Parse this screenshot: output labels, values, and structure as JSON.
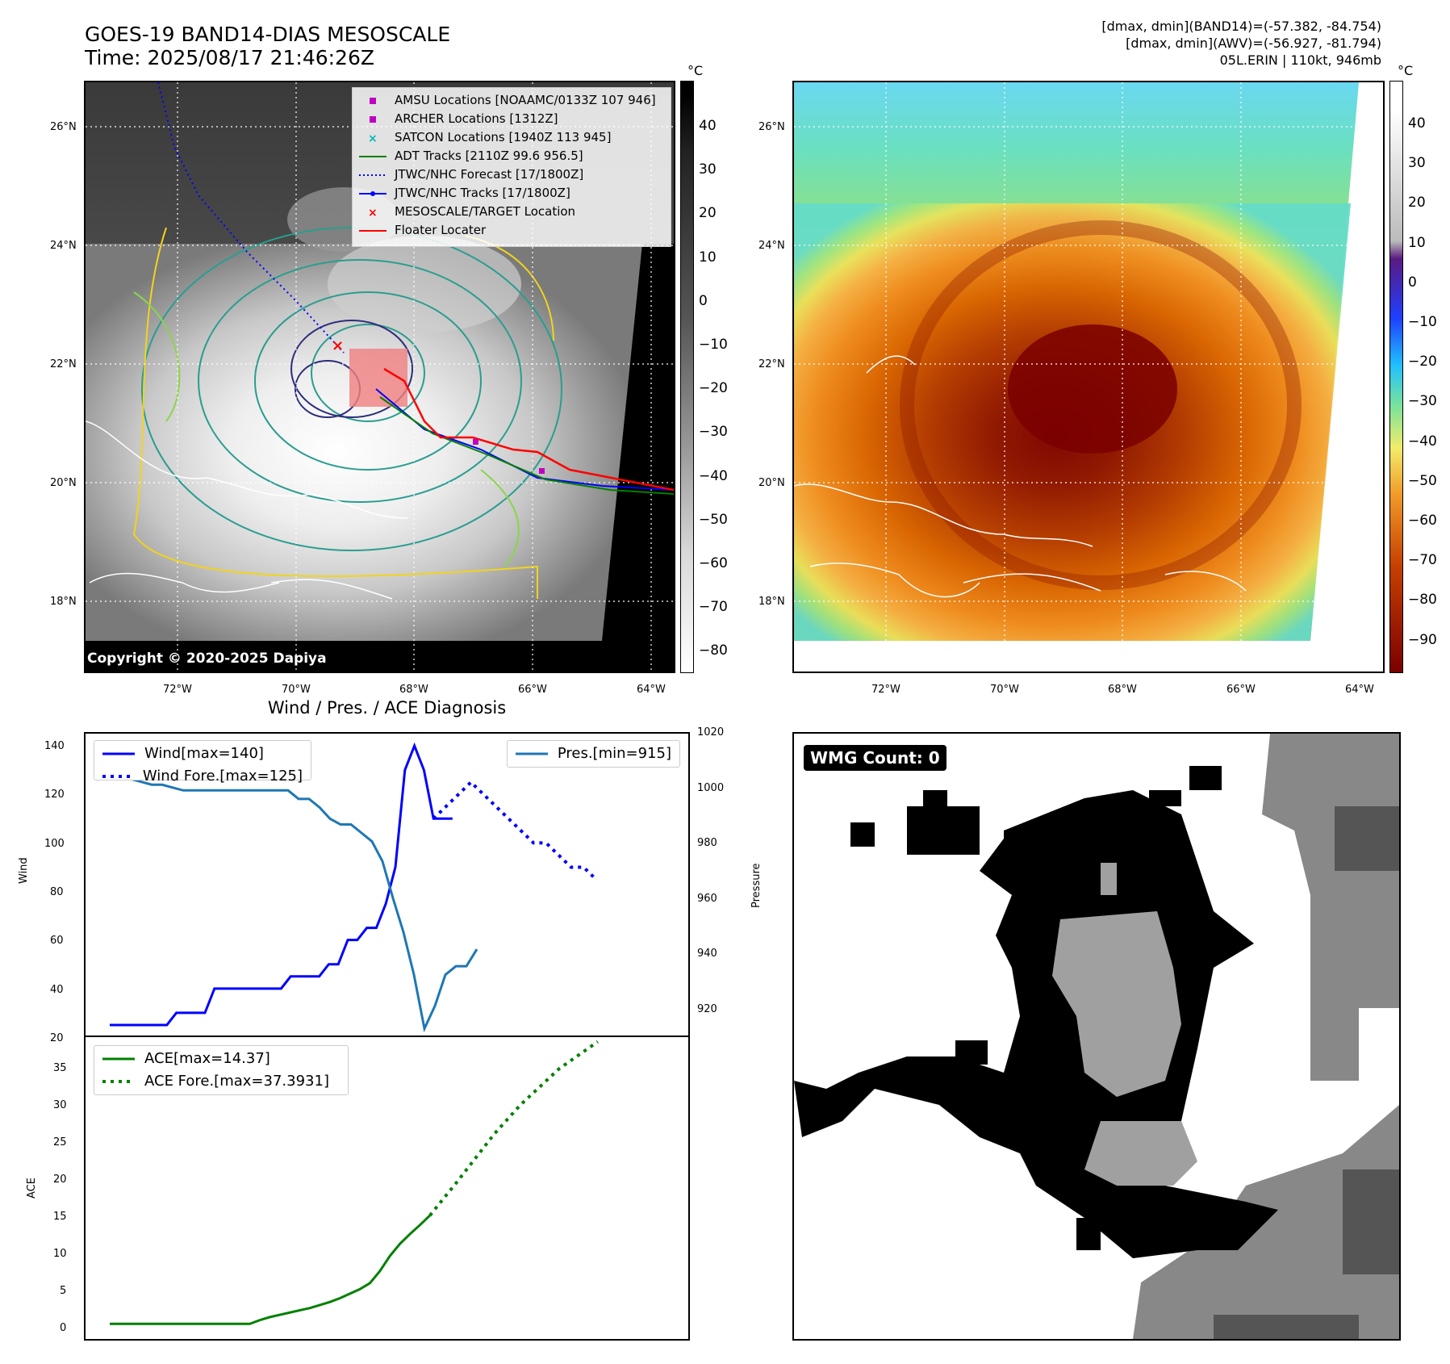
{
  "top_left": {
    "title_line1": "GOES-19 BAND14-DIAS MESOSCALE",
    "title_line2": "Time: 2025/08/17 21:46:26Z",
    "cbar_unit": "°C",
    "cbar_ticks": [
      "40",
      "30",
      "20",
      "10",
      "0",
      "−10",
      "−20",
      "−30",
      "−40",
      "−50",
      "−60",
      "−70",
      "−80"
    ],
    "lat_labels": [
      "26°N",
      "24°N",
      "22°N",
      "20°N",
      "18°N"
    ],
    "lon_labels": [
      "72°W",
      "70°W",
      "68°W",
      "66°W",
      "64°W"
    ],
    "copyright": "Copyright © 2020-2025 Dapiya",
    "legend": [
      {
        "label": "AMSU Locations [NOAAMC/0133Z 107 946]",
        "color": "#c000c0",
        "marker": "square"
      },
      {
        "label": "ARCHER Locations [1312Z]",
        "color": "#c000c0",
        "marker": "square"
      },
      {
        "label": "SATCON Locations [1940Z 113 945]",
        "color": "#00b8b8",
        "marker": "x"
      },
      {
        "label": "ADT Tracks [2110Z 99.6 956.5]",
        "color": "#008000",
        "marker": "line"
      },
      {
        "label": "JTWC/NHC Forecast [17/1800Z]",
        "color": "#0000ff",
        "marker": "dotted"
      },
      {
        "label": "JTWC/NHC Tracks [17/1800Z]",
        "color": "#0000ff",
        "marker": "line-dot"
      },
      {
        "label": "MESOSCALE/TARGET Location",
        "color": "#ff0000",
        "marker": "x"
      },
      {
        "label": "Floater Locater",
        "color": "#ff0000",
        "marker": "line"
      }
    ]
  },
  "top_right": {
    "header_line1": "[dmax, dmin](BAND14)=(-57.382, -84.754)",
    "header_line2": "[dmax, dmin](AWV)=(-56.927, -81.794)",
    "header_line3": "05L.ERIN | 110kt, 946mb",
    "cbar_unit": "°C",
    "cbar_ticks": [
      "40",
      "30",
      "20",
      "10",
      "0",
      "−10",
      "−20",
      "−30",
      "−40",
      "−50",
      "−60",
      "−70",
      "−80",
      "−90"
    ],
    "lat_labels": [
      "26°N",
      "24°N",
      "22°N",
      "20°N",
      "18°N"
    ],
    "lon_labels": [
      "72°W",
      "70°W",
      "68°W",
      "66°W",
      "64°W"
    ]
  },
  "bottom_left": {
    "title": "Wind / Pres. / ACE Diagnosis",
    "wind_ylabel": "Wind",
    "pres_ylabel": "Pressure",
    "ace_ylabel": "ACE",
    "wind_ticks": [
      "140",
      "120",
      "100",
      "80",
      "60",
      "40",
      "20"
    ],
    "pres_ticks": [
      "1020",
      "1000",
      "980",
      "960",
      "940",
      "920"
    ],
    "ace_ticks": [
      "35",
      "30",
      "25",
      "20",
      "15",
      "10",
      "5",
      "0"
    ],
    "legend_wind": "Wind[max=140]",
    "legend_wind_fore": "Wind Fore.[max=125]",
    "legend_pres": "Pres.[min=915]",
    "legend_ace": "ACE[max=14.37]",
    "legend_ace_fore": "ACE Fore.[max=37.3931]"
  },
  "bottom_right": {
    "badge": "WMG Count: 0"
  },
  "chart_data": [
    {
      "type": "line",
      "title": "Wind / Pres. / ACE Diagnosis",
      "ylabel": "Wind",
      "ylim": [
        20,
        145
      ],
      "series": [
        {
          "name": "Wind[max=140]",
          "color": "#0000ff",
          "values": [
            25,
            25,
            25,
            25,
            25,
            25,
            25,
            30,
            30,
            30,
            30,
            40,
            40,
            40,
            40,
            40,
            40,
            40,
            40,
            45,
            45,
            45,
            45,
            50,
            50,
            60,
            60,
            65,
            65,
            75,
            90,
            130,
            140,
            130,
            110,
            110,
            110
          ]
        },
        {
          "name": "Wind Fore.[max=125]",
          "color": "#0000ff",
          "values": [
            110,
            115,
            120,
            125,
            120,
            115,
            110,
            105,
            100,
            100,
            95,
            90,
            90,
            85
          ]
        }
      ]
    },
    {
      "type": "line",
      "ylabel": "Pressure",
      "ylim": [
        913,
        1020
      ],
      "series": [
        {
          "name": "Pres.[min=915]",
          "color": "#1f77b4",
          "values": [
            1005,
            1005,
            1004,
            1003,
            1002,
            1002,
            1001,
            1000,
            1000,
            1000,
            1000,
            1000,
            1000,
            1000,
            1000,
            1000,
            1000,
            1000,
            997,
            997,
            994,
            990,
            988,
            988,
            985,
            982,
            975,
            962,
            950,
            935,
            916,
            924,
            935,
            938,
            938,
            944
          ]
        }
      ]
    },
    {
      "type": "line",
      "ylabel": "ACE",
      "ylim": [
        -2,
        38
      ],
      "series": [
        {
          "name": "ACE[max=14.37]",
          "color": "#008000",
          "values": [
            0,
            0,
            0,
            0,
            0,
            0,
            0,
            0,
            0,
            0,
            0,
            0,
            0,
            0,
            0,
            0.5,
            0.9,
            1.2,
            1.5,
            1.8,
            2.1,
            2.5,
            2.9,
            3.4,
            4.0,
            4.6,
            5.4,
            7.0,
            9.0,
            10.6,
            11.9,
            13.1,
            14.37
          ]
        },
        {
          "name": "ACE Fore.[max=37.3931]",
          "color": "#008000",
          "values": [
            14.37,
            16.5,
            18.6,
            20.8,
            23.0,
            25.2,
            27.1,
            29.0,
            30.6,
            32.2,
            33.8,
            35.0,
            36.2,
            37.3931
          ]
        }
      ]
    }
  ]
}
